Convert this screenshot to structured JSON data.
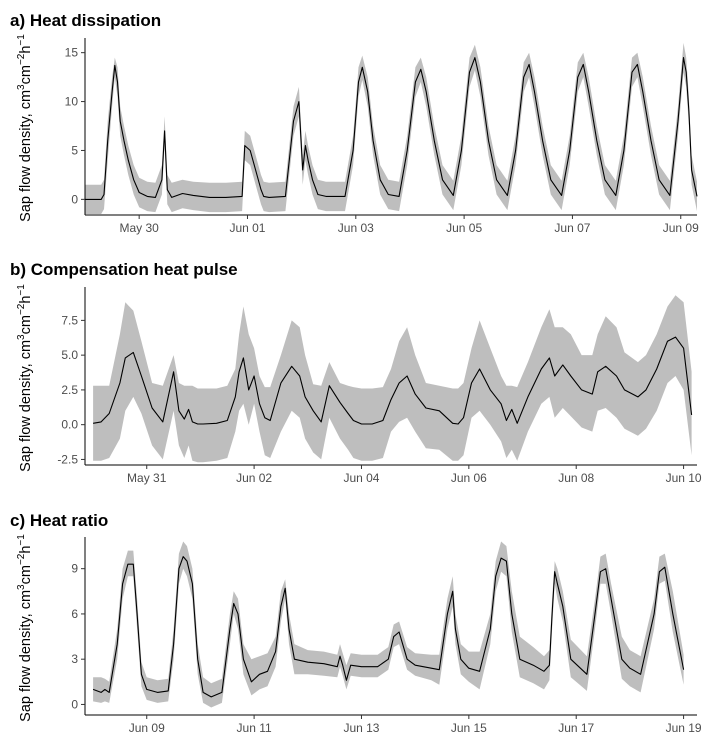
{
  "colors": {
    "line": "#000000",
    "band": "#bebebe",
    "axis": "#000000",
    "tick_text": "#4d4d4d"
  },
  "chart_data": [
    {
      "type": "area",
      "title": "a) Heat dissipation",
      "ylabel": "Sap flow density, cm³cm⁻²h⁻¹",
      "xlabel": "",
      "x_units": "days since midnight May 28",
      "xlim": [
        1.0,
        12.3
      ],
      "ylim": [
        -1.6,
        16.5
      ],
      "yticks": [
        0,
        5,
        10,
        15
      ],
      "xticks": [
        {
          "x": 2,
          "label": "May 30"
        },
        {
          "x": 4,
          "label": "Jun 01"
        },
        {
          "x": 6,
          "label": "Jun 03"
        },
        {
          "x": 8,
          "label": "Jun 05"
        },
        {
          "x": 10,
          "label": "Jun 07"
        },
        {
          "x": 12,
          "label": "Jun 09"
        }
      ],
      "series": [
        {
          "x": [
            1.0,
            1.3,
            1.35,
            1.42,
            1.5,
            1.55,
            1.6,
            1.65,
            1.72,
            1.8,
            1.9,
            2.0,
            2.15,
            2.3,
            2.42,
            2.47,
            2.52,
            2.6,
            2.8,
            3.0,
            3.3,
            3.6,
            3.9,
            3.95,
            4.05,
            4.15,
            4.25,
            4.3,
            4.4,
            4.7,
            4.85,
            4.95,
            5.02,
            5.07,
            5.12,
            5.2,
            5.3,
            5.45,
            5.6,
            5.8,
            5.95,
            6.05,
            6.12,
            6.22,
            6.32,
            6.45,
            6.6,
            6.8,
            6.95,
            7.1,
            7.2,
            7.3,
            7.45,
            7.6,
            7.8,
            7.95,
            8.1,
            8.2,
            8.3,
            8.45,
            8.6,
            8.8,
            8.95,
            9.1,
            9.2,
            9.3,
            9.45,
            9.6,
            9.8,
            9.95,
            10.1,
            10.2,
            10.3,
            10.45,
            10.6,
            10.8,
            10.95,
            11.1,
            11.2,
            11.3,
            11.45,
            11.6,
            11.8,
            11.95,
            12.05,
            12.1,
            12.15,
            12.2,
            12.3
          ],
          "y": [
            0,
            0,
            0.5,
            6,
            11,
            13.7,
            12,
            8,
            6,
            4,
            2,
            0.7,
            0.3,
            0.2,
            2,
            7,
            1,
            0.2,
            0.6,
            0.4,
            0.2,
            0.2,
            0.3,
            5.5,
            5,
            3,
            1,
            0.3,
            0.2,
            0.3,
            8,
            10,
            3,
            5.5,
            4,
            2,
            0.5,
            0.3,
            0.3,
            0.3,
            5,
            12,
            13.5,
            11,
            6,
            2,
            0.5,
            0.3,
            5,
            12,
            13.3,
            11,
            6,
            2,
            0.4,
            5,
            13,
            14.5,
            12,
            6,
            2,
            0.4,
            5,
            12.5,
            13.8,
            11,
            6,
            2,
            0.4,
            5,
            12.5,
            13.8,
            11,
            6,
            2,
            0.4,
            5,
            13,
            13.8,
            11,
            6,
            2,
            0.4,
            8,
            14.5,
            13,
            9,
            3,
            0.3
          ],
          "upper": [
            1.5,
            1.5,
            2,
            8,
            12.5,
            14.5,
            13.5,
            9.5,
            7.5,
            5.5,
            3.5,
            2.2,
            1.8,
            1.7,
            3.5,
            8.5,
            2.5,
            1.7,
            2,
            1.8,
            1.7,
            1.7,
            1.8,
            7,
            6.5,
            4.5,
            2.5,
            1.8,
            1.7,
            1.8,
            9.5,
            11.5,
            4.5,
            7,
            5.5,
            3.5,
            2,
            1.8,
            1.8,
            1.8,
            6.5,
            13.5,
            14.7,
            12.5,
            7.5,
            3.5,
            2,
            1.8,
            6.5,
            13.5,
            14.5,
            12.5,
            7.5,
            3.5,
            1.9,
            6.5,
            14.5,
            15.8,
            13.5,
            7.5,
            3.5,
            1.9,
            6.5,
            14,
            15,
            12.5,
            7.5,
            3.5,
            1.9,
            6.5,
            14,
            15,
            12.5,
            7.5,
            3.5,
            1.9,
            6.5,
            14.5,
            15,
            12.5,
            7.5,
            3.5,
            1.9,
            9.5,
            16,
            14.5,
            10.5,
            4.5,
            1.8
          ],
          "lower": [
            -1.5,
            -1.5,
            -1,
            4,
            9.5,
            12.5,
            10.5,
            6.5,
            4.5,
            2.5,
            0.5,
            -0.8,
            -1.2,
            -1.3,
            0.5,
            5.5,
            -0.5,
            -1.3,
            -0.9,
            -1.1,
            -1.3,
            -1.3,
            -1.2,
            4,
            3.5,
            1.5,
            -0.5,
            -1.2,
            -1.3,
            -1.2,
            6.5,
            8.5,
            1.5,
            4,
            2.5,
            0.5,
            -1,
            -1.2,
            -1.2,
            -1.2,
            3.5,
            10.5,
            12.2,
            9.5,
            4.5,
            0.5,
            -1,
            -1.2,
            3.5,
            10.5,
            12,
            9.5,
            4.5,
            0.5,
            -1.1,
            3.5,
            11.5,
            13.2,
            10.5,
            4.5,
            0.5,
            -1.1,
            3.5,
            11,
            12.5,
            9.5,
            4.5,
            0.5,
            -1.1,
            3.5,
            11,
            12.5,
            9.5,
            4.5,
            0.5,
            -1.1,
            3.5,
            11.5,
            12.5,
            9.5,
            4.5,
            0.5,
            -1.1,
            6.5,
            13,
            11.5,
            7.5,
            1.5,
            -1.2
          ]
        }
      ]
    },
    {
      "type": "area",
      "title": "b) Compensation heat pulse",
      "ylabel": "Sap flow density, cm³cm⁻²h⁻¹",
      "xlabel": "",
      "x_units": "days since midnight May 29",
      "xlim": [
        0.85,
        12.25
      ],
      "ylim": [
        -2.9,
        9.9
      ],
      "yticks": [
        -2.5,
        0.0,
        2.5,
        5.0,
        7.5
      ],
      "ytick_labels": [
        "-2.5",
        "0.0",
        "2.5",
        "5.0",
        "7.5"
      ],
      "xticks": [
        {
          "x": 2,
          "label": "May 31"
        },
        {
          "x": 4,
          "label": "Jun 02"
        },
        {
          "x": 6,
          "label": "Jun 04"
        },
        {
          "x": 8,
          "label": "Jun 06"
        },
        {
          "x": 10,
          "label": "Jun 08"
        },
        {
          "x": 12,
          "label": "Jun 10"
        }
      ],
      "series": [
        {
          "x": [
            1.0,
            1.15,
            1.3,
            1.5,
            1.6,
            1.75,
            1.9,
            2.1,
            2.3,
            2.5,
            2.6,
            2.7,
            2.78,
            2.85,
            2.95,
            3.05,
            3.3,
            3.5,
            3.65,
            3.72,
            3.8,
            3.9,
            4.0,
            4.1,
            4.2,
            4.3,
            4.5,
            4.7,
            4.85,
            4.95,
            5.1,
            5.25,
            5.4,
            5.6,
            5.75,
            5.85,
            6.0,
            6.2,
            6.4,
            6.55,
            6.7,
            6.85,
            7.0,
            7.2,
            7.45,
            7.7,
            7.8,
            7.9,
            8.05,
            8.2,
            8.4,
            8.6,
            8.7,
            8.8,
            8.9,
            9.1,
            9.35,
            9.5,
            9.6,
            9.75,
            9.9,
            10.1,
            10.3,
            10.4,
            10.55,
            10.75,
            10.9,
            11.15,
            11.3,
            11.5,
            11.7,
            11.85,
            12.0,
            12.15
          ],
          "y": [
            0.1,
            0.2,
            0.8,
            3,
            4.8,
            5.2,
            3.5,
            1.2,
            0.2,
            3.8,
            1,
            0.4,
            1.1,
            0.2,
            0.05,
            0.05,
            0.1,
            0.3,
            2,
            3.8,
            4.8,
            2.5,
            3.5,
            1.5,
            0.5,
            0.3,
            3,
            4.2,
            3.5,
            2,
            1,
            0.2,
            2.8,
            1.6,
            0.8,
            0.3,
            0.05,
            0.05,
            0.3,
            1.8,
            3,
            3.5,
            2.2,
            1.2,
            1,
            0.1,
            0.05,
            0.5,
            3,
            4,
            2.5,
            1.5,
            0.3,
            1.1,
            0.1,
            2,
            4,
            4.8,
            3.5,
            4.3,
            3.5,
            2.5,
            2.2,
            3.8,
            4.2,
            3.5,
            2.5,
            2,
            2.5,
            4,
            6,
            6.3,
            5.5,
            0.7
          ],
          "upper": [
            2.8,
            2.8,
            2.8,
            6.5,
            8.8,
            8.2,
            6,
            3,
            2.8,
            5,
            3,
            2.8,
            2.8,
            2.8,
            2.6,
            2.6,
            2.6,
            2.8,
            4,
            6.5,
            8.5,
            6.5,
            5.5,
            3.5,
            2.7,
            2.7,
            5,
            7.5,
            7,
            5,
            2.9,
            2.8,
            4.5,
            3,
            2.8,
            2.7,
            2.6,
            2.6,
            2.7,
            4,
            6,
            7,
            5,
            3,
            2.8,
            2.6,
            2.6,
            3,
            5.5,
            7.5,
            5.5,
            3.5,
            2.8,
            2.8,
            2.7,
            4.5,
            7,
            8.3,
            7,
            7,
            6.5,
            5,
            5,
            6.5,
            7.8,
            7,
            5.2,
            4.5,
            5,
            6.5,
            8.5,
            9.3,
            8.8,
            3.8
          ],
          "lower": [
            -2.6,
            -2.6,
            -2.4,
            -1,
            1,
            2,
            0.8,
            -1.5,
            -2.5,
            1,
            -1.5,
            -2.4,
            -1.5,
            -2.6,
            -2.7,
            -2.7,
            -2.6,
            -2.4,
            -0.5,
            1,
            1.5,
            0,
            1.5,
            -0.5,
            -2.2,
            -2.4,
            -0.5,
            1,
            0.5,
            -1,
            -2,
            -2.5,
            0.5,
            -1,
            -1.8,
            -2.4,
            -2.6,
            -2.6,
            -2.4,
            -0.5,
            0.2,
            0.5,
            -0.5,
            -1.7,
            -1.8,
            -2.6,
            -2.6,
            -2.2,
            0.5,
            1,
            0,
            -1.2,
            -2.4,
            -1.8,
            -2.6,
            -0.5,
            1.5,
            2,
            0.5,
            1.2,
            0.6,
            -0.2,
            -0.5,
            1,
            1.2,
            0.5,
            -0.3,
            -0.8,
            -0.3,
            1,
            3,
            3.5,
            2.5,
            -2.2
          ]
        }
      ]
    },
    {
      "type": "area",
      "title": "c) Heat ratio",
      "ylabel": "Sap flow density, cm³cm⁻²h⁻¹",
      "xlabel": "",
      "x_units": "days since midnight Jun 07",
      "xlim": [
        0.85,
        12.25
      ],
      "ylim": [
        -0.7,
        11.1
      ],
      "yticks": [
        0,
        3,
        6,
        9
      ],
      "xticks": [
        {
          "x": 2,
          "label": "Jun 09"
        },
        {
          "x": 4,
          "label": "Jun 11"
        },
        {
          "x": 6,
          "label": "Jun 13"
        },
        {
          "x": 8,
          "label": "Jun 15"
        },
        {
          "x": 10,
          "label": "Jun 17"
        },
        {
          "x": 12,
          "label": "Jun 19"
        }
      ],
      "series": [
        {
          "x": [
            1.0,
            1.15,
            1.22,
            1.3,
            1.45,
            1.55,
            1.65,
            1.75,
            1.82,
            1.9,
            2.0,
            2.2,
            2.4,
            2.5,
            2.6,
            2.68,
            2.75,
            2.85,
            2.95,
            3.05,
            3.2,
            3.4,
            3.55,
            3.62,
            3.7,
            3.8,
            3.95,
            4.1,
            4.25,
            4.4,
            4.5,
            4.58,
            4.65,
            4.75,
            5.0,
            5.3,
            5.55,
            5.6,
            5.65,
            5.72,
            5.8,
            6.0,
            6.3,
            6.5,
            6.6,
            6.7,
            6.85,
            7.0,
            7.3,
            7.45,
            7.6,
            7.7,
            7.75,
            7.85,
            8.0,
            8.2,
            8.4,
            8.5,
            8.6,
            8.7,
            8.8,
            8.95,
            9.2,
            9.4,
            9.5,
            9.55,
            9.6,
            9.65,
            9.75,
            9.9,
            10.2,
            10.35,
            10.45,
            10.55,
            10.65,
            10.85,
            11.0,
            11.2,
            11.45,
            11.55,
            11.65,
            11.8,
            12.0
          ],
          "y": [
            1,
            0.8,
            1,
            0.8,
            4,
            8,
            9.3,
            9.3,
            6,
            2,
            1,
            0.8,
            0.9,
            4,
            9,
            9.8,
            9.5,
            8,
            3,
            0.8,
            0.5,
            0.8,
            5,
            6.7,
            6,
            3,
            1.5,
            2,
            2.2,
            3.5,
            6.5,
            7.7,
            5,
            3,
            2.8,
            2.7,
            2.5,
            3.2,
            2.6,
            1.6,
            2.6,
            2.5,
            2.5,
            3,
            4.5,
            4.8,
            3,
            2.6,
            2.4,
            2.3,
            6,
            7.5,
            5,
            3,
            2.4,
            2.2,
            5,
            8.5,
            9.7,
            9.5,
            6,
            3,
            2.6,
            2.2,
            2.6,
            6,
            8.8,
            8,
            6.5,
            3,
            2,
            6,
            8.8,
            9,
            7,
            3,
            2.4,
            2,
            6,
            8.8,
            9.1,
            6,
            2.3
          ],
          "upper": [
            1.8,
            1.8,
            1.7,
            1.5,
            5,
            9,
            10.2,
            10.2,
            7,
            2.8,
            1.8,
            1.6,
            1.7,
            5,
            10,
            10.8,
            10.5,
            9,
            4,
            1.8,
            1.4,
            1.7,
            6,
            7.5,
            7,
            4,
            3,
            3.2,
            3.4,
            4.5,
            7.5,
            8.3,
            6,
            4,
            3.6,
            3.5,
            3.3,
            4,
            3.4,
            2.6,
            3.4,
            3.3,
            3.3,
            3.8,
            5.3,
            5.5,
            3.8,
            3.4,
            3.3,
            3.3,
            7,
            8.5,
            6,
            4,
            3.5,
            3.5,
            6,
            9.5,
            10.8,
            10.5,
            7.5,
            4.5,
            3.8,
            3.2,
            3.6,
            7,
            9.5,
            9,
            7.5,
            4.3,
            3.2,
            7,
            9.8,
            10,
            8,
            4.5,
            3.6,
            3.2,
            7,
            9.8,
            10,
            7.5,
            3.3
          ],
          "lower": [
            0.2,
            0.1,
            0.2,
            0.1,
            3,
            7,
            8.5,
            8.5,
            5,
            1.2,
            0.3,
            0.1,
            0.2,
            3,
            8,
            9,
            8.5,
            7,
            2,
            0.1,
            -0.2,
            0.1,
            4,
            6,
            5,
            2,
            0.6,
            1,
            1.2,
            2.5,
            5.5,
            7,
            4,
            2,
            2,
            1.9,
            1.8,
            2.5,
            1.9,
            1,
            1.9,
            1.8,
            1.8,
            2.3,
            3.8,
            4,
            2.3,
            1.9,
            1.6,
            1.3,
            5,
            6.5,
            4,
            2,
            1.5,
            1,
            4,
            7.5,
            8.8,
            8.5,
            4.8,
            1.8,
            1.4,
            1,
            1.6,
            5,
            8,
            7,
            5.5,
            1.8,
            0.9,
            5,
            8,
            8,
            6,
            1.7,
            1.2,
            0.8,
            5,
            8,
            8.2,
            4.8,
            1.3
          ]
        }
      ]
    }
  ]
}
